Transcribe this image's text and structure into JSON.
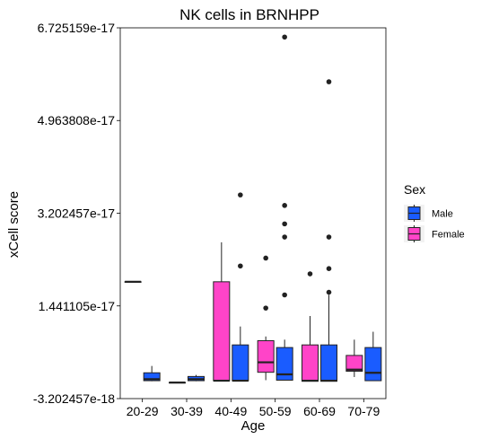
{
  "chart_data": {
    "type": "boxplot",
    "title": "NK cells in BRNHPP",
    "xlabel": "Age",
    "ylabel": "xCell score",
    "categories": [
      "20-29",
      "30-39",
      "40-49",
      "50-59",
      "60-69",
      "70-79"
    ],
    "ylim": [
      -3.202457e-18,
      6.725159e-17
    ],
    "yticks": [
      -3.202457e-18,
      1.441105e-17,
      3.202457e-17,
      4.963808e-17,
      6.725159e-17
    ],
    "ytick_labels": [
      "-3.202457e-18",
      "1.441105e-17",
      "3.202457e-17",
      "4.963808e-17",
      "6.725159e-17"
    ],
    "grid": false,
    "legend": {
      "title": "Sex",
      "position": "right",
      "entries": [
        {
          "label": "Male",
          "color": "#1a5cff"
        },
        {
          "label": "Female",
          "color": "#ff44c8"
        }
      ]
    },
    "series": [
      {
        "name": "Female",
        "color": "#ff44c8",
        "boxes": [
          {
            "category": "20-29",
            "min": 1.9e-17,
            "q1": 1.9e-17,
            "median": 1.9e-17,
            "q3": 1.9e-17,
            "max": 1.9e-17,
            "outliers": []
          },
          {
            "category": "30-39",
            "min": -1.5e-19,
            "q1": -1.5e-19,
            "median": -1.5e-19,
            "q3": -1.5e-19,
            "max": -1.5e-19,
            "outliers": []
          },
          {
            "category": "40-49",
            "min": 2e-19,
            "q1": 2e-19,
            "median": 2e-19,
            "q3": 1.9e-17,
            "max": 2.65e-17,
            "outliers": []
          },
          {
            "category": "50-59",
            "min": 3e-19,
            "q1": 1.8e-18,
            "median": 3.7e-18,
            "q3": 7.8e-18,
            "max": 8.6e-18,
            "outliers": [
              1.4e-17,
              2.35e-17
            ]
          },
          {
            "category": "60-69",
            "min": 1e-19,
            "q1": 1e-19,
            "median": 2e-19,
            "q3": 7e-18,
            "max": 1.25e-17,
            "outliers": [
              2.05e-17
            ]
          },
          {
            "category": "70-79",
            "min": 9e-19,
            "q1": 2e-18,
            "median": 2.3e-18,
            "q3": 5e-18,
            "max": 8e-18,
            "outliers": []
          }
        ]
      },
      {
        "name": "Male",
        "color": "#1a5cff",
        "boxes": [
          {
            "category": "20-29",
            "min": 1e-19,
            "q1": 2e-19,
            "median": 5e-19,
            "q3": 1.7e-18,
            "max": 3e-18,
            "outliers": []
          },
          {
            "category": "30-39",
            "min": 1e-19,
            "q1": 2e-19,
            "median": 5e-19,
            "q3": 1e-18,
            "max": 1.3e-18,
            "outliers": []
          },
          {
            "category": "40-49",
            "min": 2e-19,
            "q1": 2e-19,
            "median": 2e-19,
            "q3": 7e-18,
            "max": 1.05e-17,
            "outliers": [
              2.2e-17,
              3.55e-17
            ]
          },
          {
            "category": "50-59",
            "min": 3e-19,
            "q1": 3e-19,
            "median": 1.4e-18,
            "q3": 6.5e-18,
            "max": 8e-18,
            "outliers": [
              1.65e-17,
              2.75e-17,
              3e-17,
              3.35e-17,
              6.55e-17
            ]
          },
          {
            "category": "60-69",
            "min": 1e-19,
            "q1": 1e-19,
            "median": 2e-19,
            "q3": 7e-18,
            "max": 1.65e-17,
            "outliers": [
              1.7e-17,
              2.15e-17,
              2.75e-17,
              5.7e-17
            ]
          },
          {
            "category": "70-79",
            "min": 2e-19,
            "q1": 2e-19,
            "median": 1.7e-18,
            "q3": 6.5e-18,
            "max": 9.5e-18,
            "outliers": []
          }
        ]
      }
    ]
  }
}
